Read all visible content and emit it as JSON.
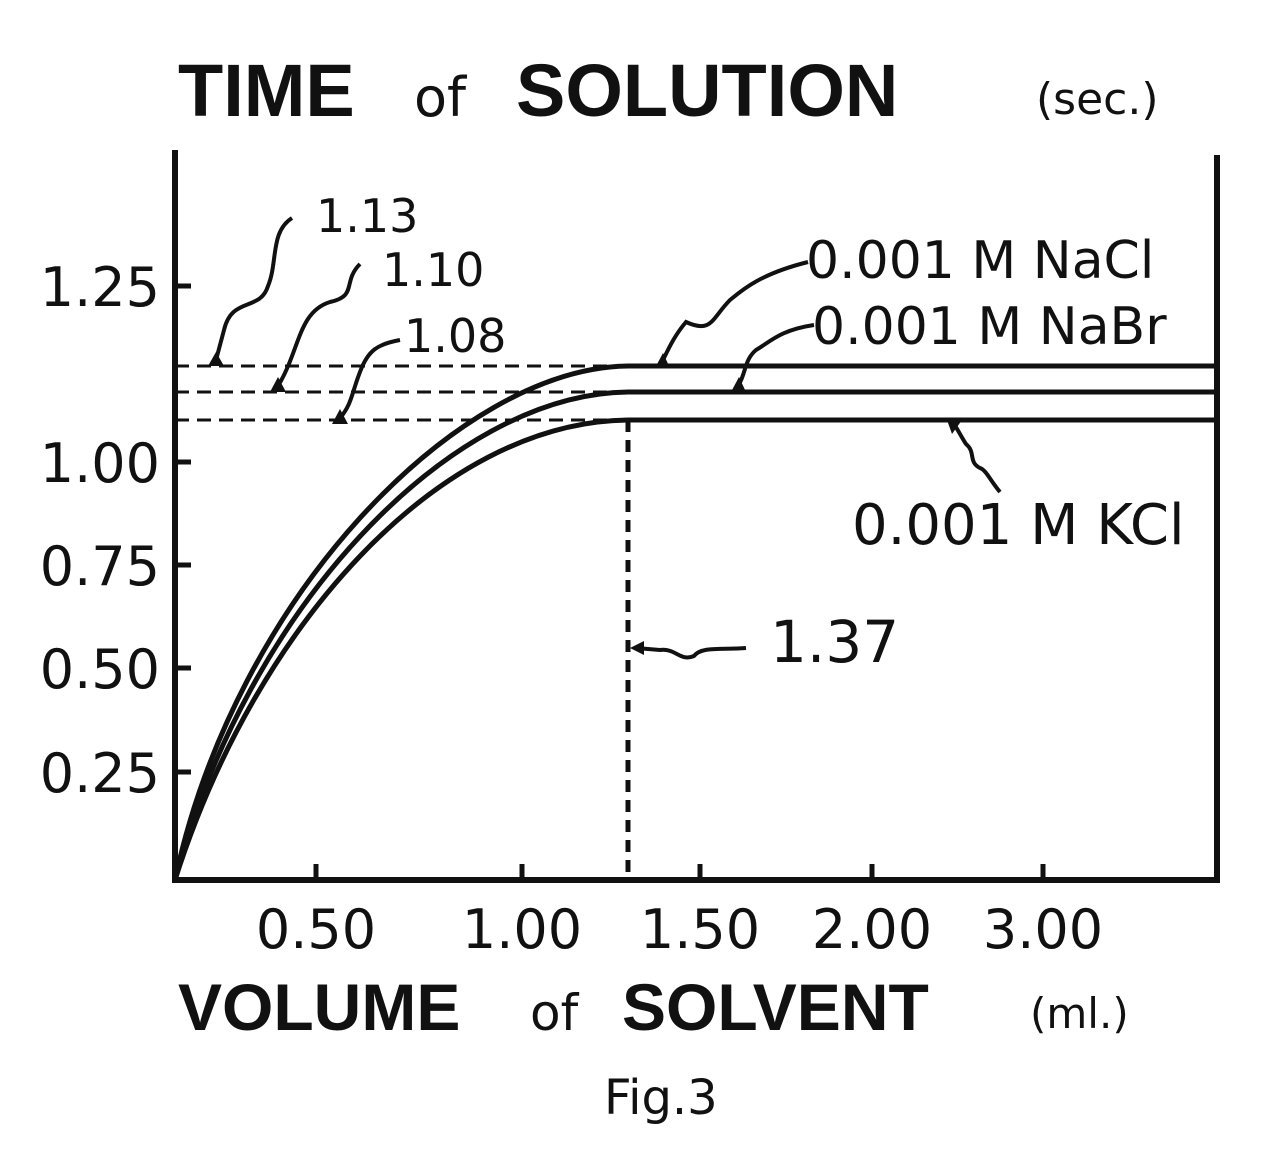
{
  "chart_data": {
    "type": "line",
    "title": {
      "part1": "TIME",
      "part2": "of",
      "part3": "SOLUTION",
      "unit": "(sec.)"
    },
    "xlabel": {
      "part1": "VOLUME",
      "part2": "of",
      "part3": "SOLVENT",
      "unit": "(ml.)"
    },
    "caption": "Fig.3",
    "y_ticks": [
      "1.25",
      "1.00",
      "0.75",
      "0.50",
      "0.25"
    ],
    "y_tick_values": [
      1.25,
      1.0,
      0.75,
      0.5,
      0.25
    ],
    "x_ticks": [
      "0.50",
      "1.00",
      "1.50",
      "2.00",
      "3.00"
    ],
    "ylim": [
      0,
      1.25
    ],
    "grid": false,
    "series": [
      {
        "name": "0.001 M NaCl",
        "plateau": 1.13,
        "saturation_volume": 1.37
      },
      {
        "name": "0.001 M NaBr",
        "plateau": 1.1,
        "saturation_volume": 1.37
      },
      {
        "name": "0.001 M KCl",
        "plateau": 1.08,
        "saturation_volume": 1.37
      }
    ],
    "annotations": {
      "plateau_labels": [
        "1.13",
        "1.10",
        "1.08"
      ],
      "volume_label": "1.37"
    }
  }
}
